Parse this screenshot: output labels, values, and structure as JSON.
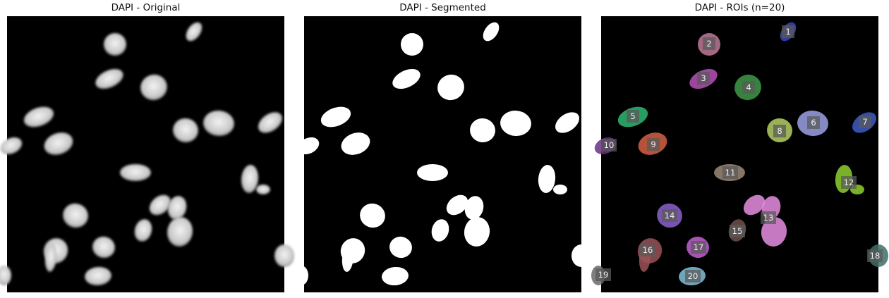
{
  "panels": {
    "original": {
      "title": "DAPI - Original"
    },
    "segmented": {
      "title": "DAPI - Segmented"
    },
    "rois": {
      "title": "DAPI - ROIs (n=20)"
    }
  },
  "colors": {
    "background": "#000000",
    "mask": "#ffffff"
  },
  "rois": [
    {
      "id": "1",
      "color": "#3f47b0"
    },
    {
      "id": "2",
      "color": "#c07a9a"
    },
    {
      "id": "3",
      "color": "#b850b8"
    },
    {
      "id": "4",
      "color": "#3f9a48"
    },
    {
      "id": "5",
      "color": "#2eb872"
    },
    {
      "id": "6",
      "color": "#9ea2e6"
    },
    {
      "id": "7",
      "color": "#3e5cc6"
    },
    {
      "id": "8",
      "color": "#b6d064"
    },
    {
      "id": "9",
      "color": "#d46044"
    },
    {
      "id": "10",
      "color": "#6a2f84"
    },
    {
      "id": "11",
      "color": "#9c8a76"
    },
    {
      "id": "12",
      "color": "#8ed02e"
    },
    {
      "id": "13",
      "color": "#e68ee2"
    },
    {
      "id": "14",
      "color": "#8c62d0"
    },
    {
      "id": "15",
      "color": "#705048"
    },
    {
      "id": "16",
      "color": "#9a5258"
    },
    {
      "id": "17",
      "color": "#c462d6"
    },
    {
      "id": "18",
      "color": "#3e6e68"
    },
    {
      "id": "19",
      "color": "#6a6a6a"
    },
    {
      "id": "20",
      "color": "#82c2dc"
    }
  ]
}
